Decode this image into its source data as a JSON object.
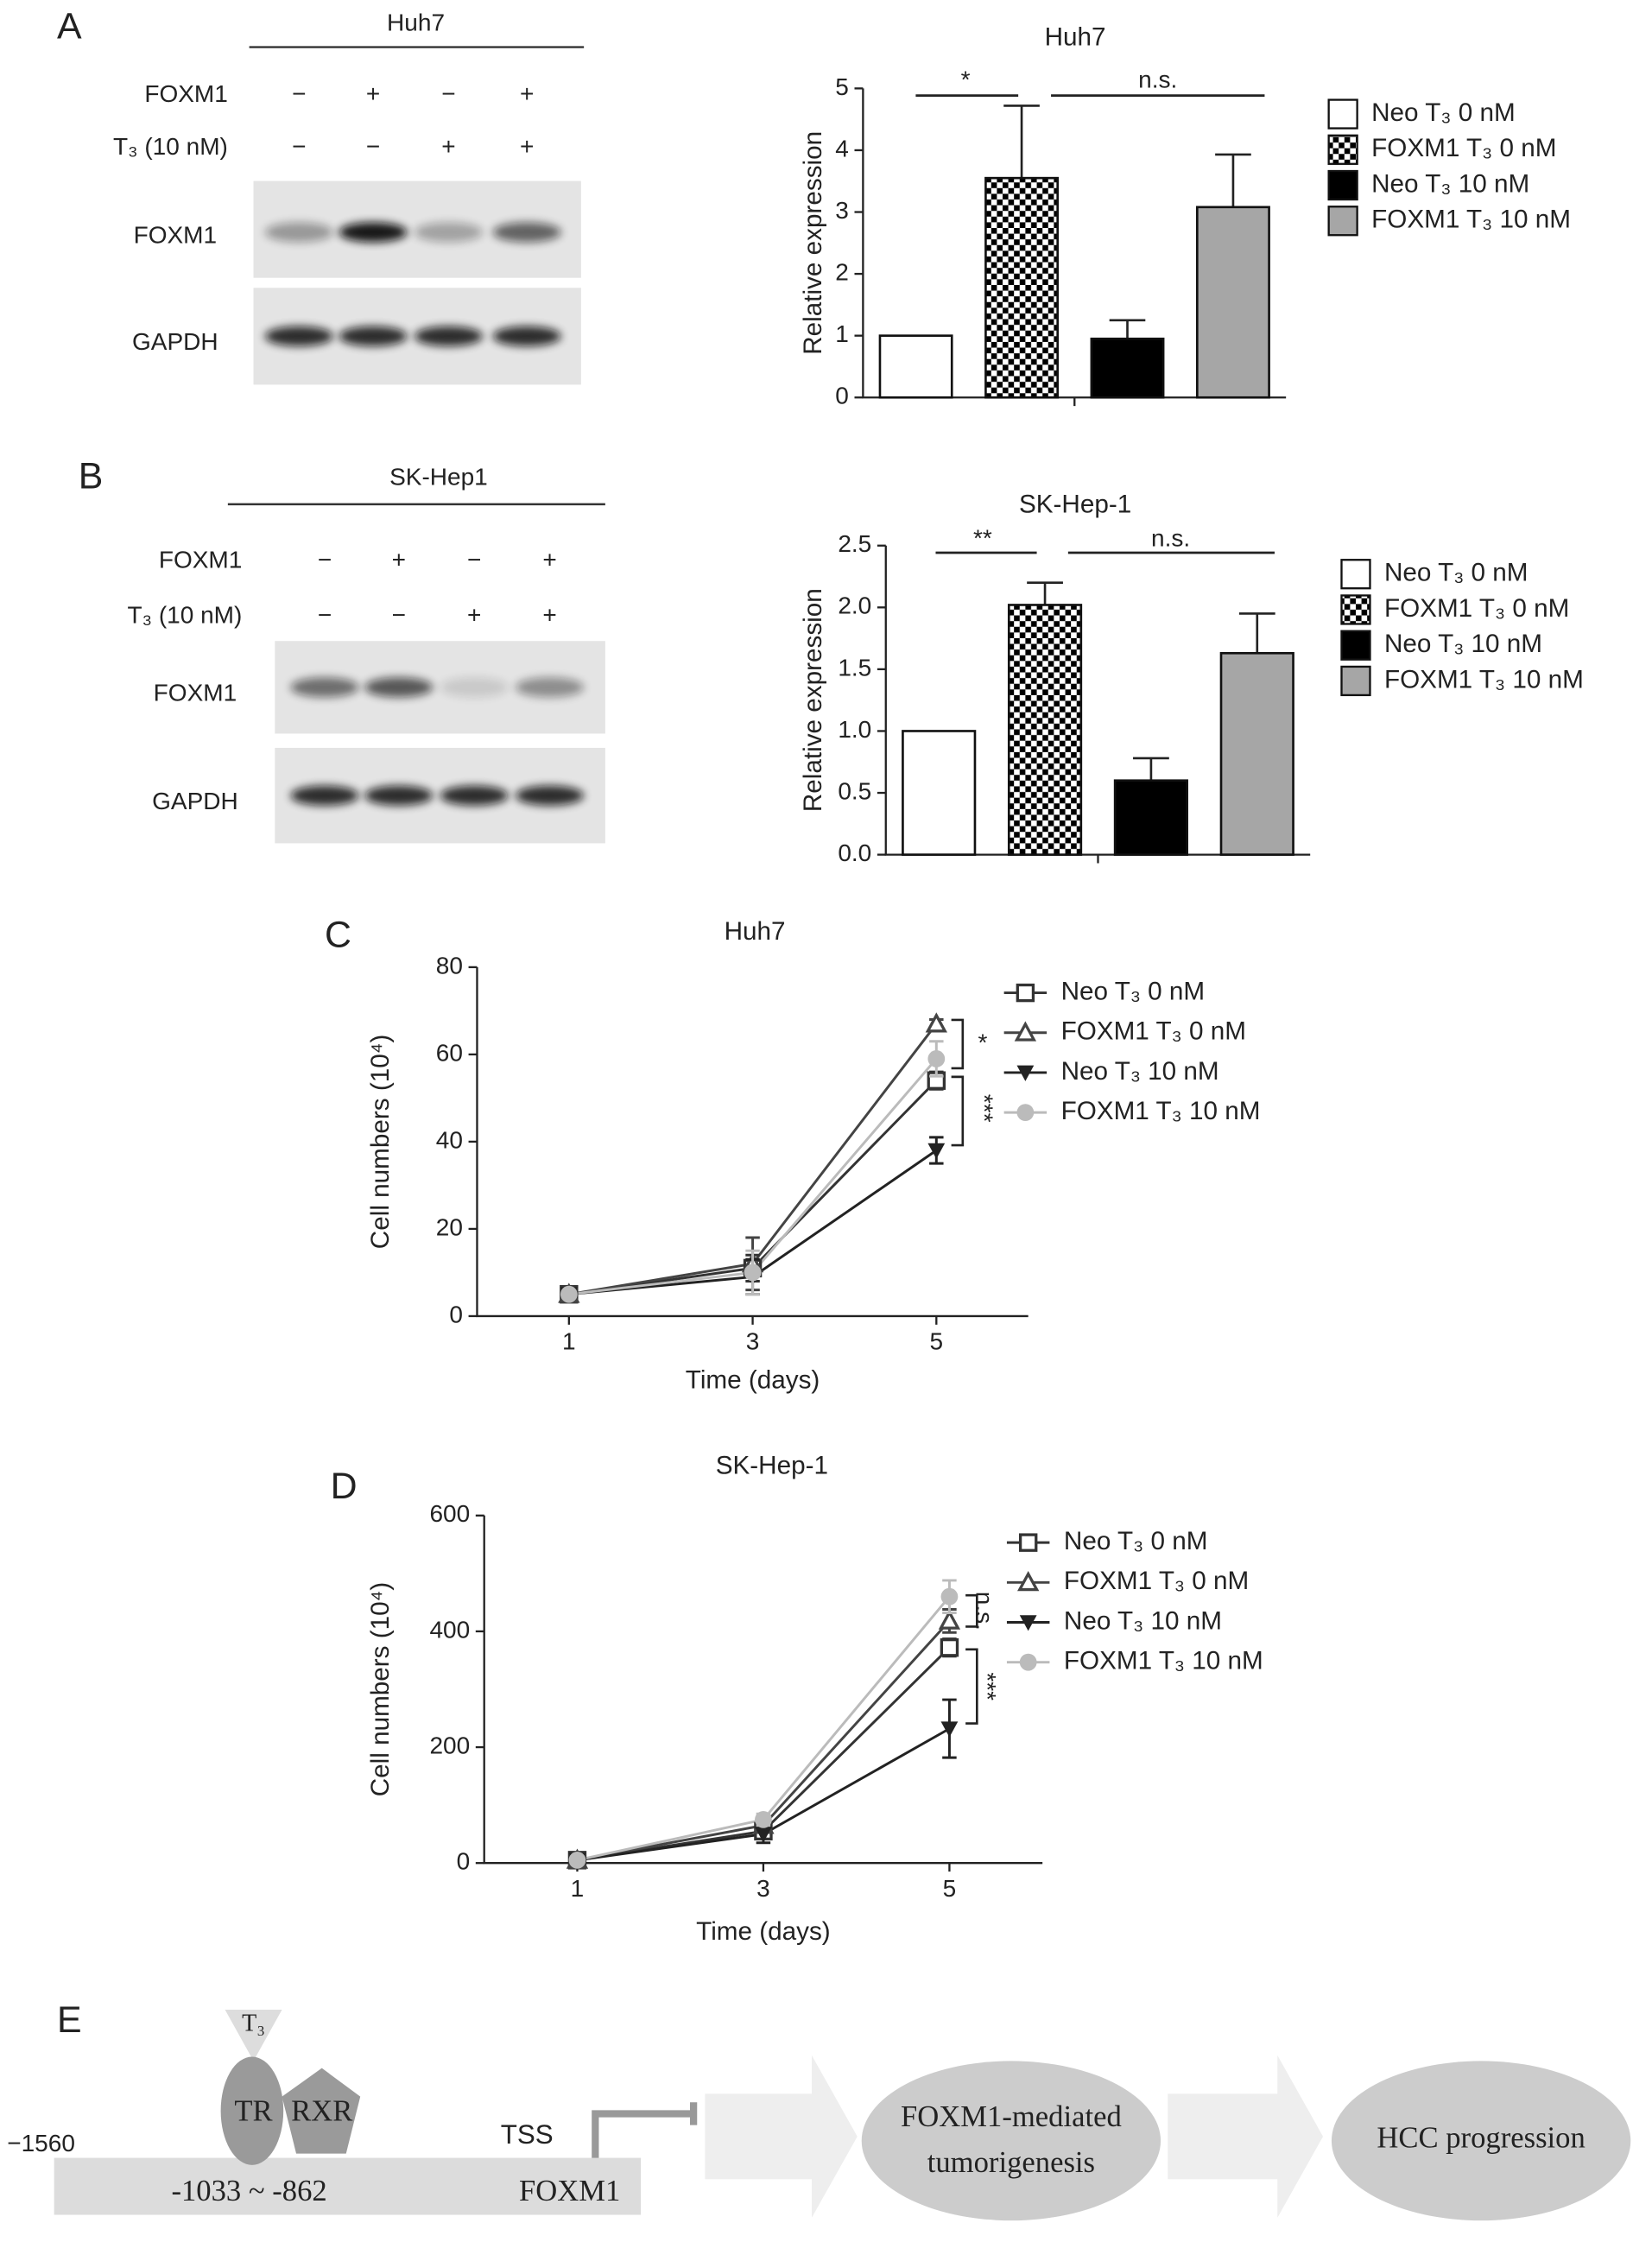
{
  "panel_labels": [
    "A",
    "B",
    "C",
    "D",
    "E"
  ],
  "blots": [
    {
      "title": "Huh7",
      "rows": [
        {
          "label": "FOXM1",
          "signs": [
            "−",
            "+",
            "−",
            "+"
          ]
        },
        {
          "label": "T₃ (10 nM)",
          "signs": [
            "−",
            "−",
            "+",
            "+"
          ]
        }
      ],
      "bands": [
        "FOXM1",
        "GAPDH"
      ]
    },
    {
      "title": "SK-Hep1",
      "rows": [
        {
          "label": "FOXM1",
          "signs": [
            "−",
            "+",
            "−",
            "+"
          ]
        },
        {
          "label": "T₃ (10 nM)",
          "signs": [
            "−",
            "−",
            "+",
            "+"
          ]
        }
      ],
      "bands": [
        "FOXM1",
        "GAPDH"
      ]
    }
  ],
  "chart_data": [
    {
      "type": "bar",
      "title": "Huh7",
      "y_label": "Relative expression",
      "categories": [
        null
      ],
      "series": [
        {
          "name": "Neo T₃ 0 nM",
          "color": "#ffffff",
          "pattern": "solid",
          "values": [
            1.0
          ],
          "errors": [
            null
          ]
        },
        {
          "name": "FOXM1 T₃ 0 nM",
          "color": "#000000",
          "pattern": "checker",
          "values": [
            3.55
          ],
          "errors": [
            1.17
          ]
        },
        {
          "name": "Neo T₃ 10 nM",
          "color": "#000000",
          "pattern": "solid",
          "values": [
            0.95
          ],
          "errors": [
            0.3
          ]
        },
        {
          "name": "FOXM1 T₃ 10 nM",
          "color": "#a6a6a6",
          "pattern": "solid",
          "values": [
            3.08
          ],
          "errors": [
            0.85
          ]
        }
      ],
      "ylim": [
        0,
        5
      ],
      "yticks": [
        0,
        1,
        2,
        3,
        4,
        5
      ],
      "annotations": [
        "*",
        "n.s."
      ]
    },
    {
      "type": "bar",
      "title": "SK-Hep-1",
      "y_label": "Relative expression",
      "categories": [
        null
      ],
      "series": [
        {
          "name": "Neo T₃ 0 nM",
          "color": "#ffffff",
          "pattern": "solid",
          "values": [
            1.0
          ],
          "errors": [
            null
          ]
        },
        {
          "name": "FOXM1 T₃ 0 nM",
          "color": "#000000",
          "pattern": "checker",
          "values": [
            2.02
          ],
          "errors": [
            0.18
          ]
        },
        {
          "name": "Neo T₃ 10 nM",
          "color": "#000000",
          "pattern": "solid",
          "values": [
            0.6
          ],
          "errors": [
            0.18
          ]
        },
        {
          "name": "FOXM1 T₃ 10 nM",
          "color": "#a6a6a6",
          "pattern": "solid",
          "values": [
            1.63
          ],
          "errors": [
            0.32
          ]
        }
      ],
      "ylim": [
        0,
        2.5
      ],
      "yticks": [
        {
          "value": 0,
          "label": "0.0"
        },
        0.5,
        {
          "value": 1,
          "label": "1.0"
        },
        1.5,
        {
          "value": 2,
          "label": "2.0"
        },
        2.5
      ],
      "annotations": [
        "**",
        "n.s."
      ]
    },
    {
      "type": "line",
      "title": "Huh7",
      "x_label": "Time (days)",
      "y_label": "Cell numbers (10⁴)",
      "x": [
        1,
        3,
        5
      ],
      "xlim": [
        0,
        6
      ],
      "xticks": [
        1,
        3,
        5
      ],
      "ylim": [
        0,
        80
      ],
      "yticks": [
        0,
        20,
        40,
        60,
        80
      ],
      "series": [
        {
          "name": "Neo T₃ 0 nM",
          "color": "#333333",
          "marker": "square-open",
          "values": [
            5,
            11,
            54
          ],
          "errors": [
            0.5,
            3,
            2
          ]
        },
        {
          "name": "FOXM1 T₃ 0 nM",
          "color": "#444444",
          "marker": "triangle-open",
          "values": [
            5,
            12,
            67
          ],
          "errors": [
            0.5,
            6,
            1
          ]
        },
        {
          "name": "Neo T₃ 10 nM",
          "color": "#222222",
          "marker": "triangle-down",
          "values": [
            5,
            9,
            38
          ],
          "errors": [
            0.5,
            4,
            3
          ]
        },
        {
          "name": "FOXM1 T₃ 10 nM",
          "color": "#bbbbbb",
          "marker": "circle",
          "values": [
            5,
            10,
            59
          ],
          "errors": [
            0.5,
            5,
            4
          ]
        }
      ],
      "annotations": [
        "*",
        "***"
      ]
    },
    {
      "type": "line",
      "title": "SK-Hep-1",
      "x_label": "Time (days)",
      "y_label": "Cell numbers (10⁴)",
      "x": [
        1,
        3,
        5
      ],
      "xlim": [
        0,
        6
      ],
      "xticks": [
        1,
        3,
        5
      ],
      "ylim": [
        0,
        600
      ],
      "yticks": [
        0,
        200,
        400,
        600
      ],
      "series": [
        {
          "name": "Neo T₃ 0 nM",
          "color": "#333333",
          "marker": "square-open",
          "values": [
            5,
            55,
            372
          ],
          "errors": [
            2,
            8,
            15
          ]
        },
        {
          "name": "FOXM1 T₃ 0 nM",
          "color": "#444444",
          "marker": "triangle-open",
          "values": [
            5,
            65,
            418
          ],
          "errors": [
            2,
            8,
            20
          ]
        },
        {
          "name": "Neo T₃ 10 nM",
          "color": "#222222",
          "marker": "triangle-down",
          "values": [
            5,
            50,
            232
          ],
          "errors": [
            2,
            15,
            50
          ]
        },
        {
          "name": "FOXM1 T₃ 10 nM",
          "color": "#bbbbbb",
          "marker": "circle",
          "values": [
            5,
            75,
            460
          ],
          "errors": [
            2,
            10,
            28
          ]
        }
      ],
      "annotations": [
        "n.s.",
        "***"
      ]
    }
  ],
  "diagram": {
    "ligand": "T₃",
    "receptors": [
      "TR",
      "RXR"
    ],
    "start": "−1560",
    "tss": "TSS",
    "region": "-1033 ~ -862",
    "gene": "FOXM1",
    "outcomes": [
      {
        "lines": [
          "FOXM1-mediated",
          "tumorigenesis"
        ]
      },
      {
        "lines": [
          "HCC progression"
        ]
      }
    ]
  }
}
